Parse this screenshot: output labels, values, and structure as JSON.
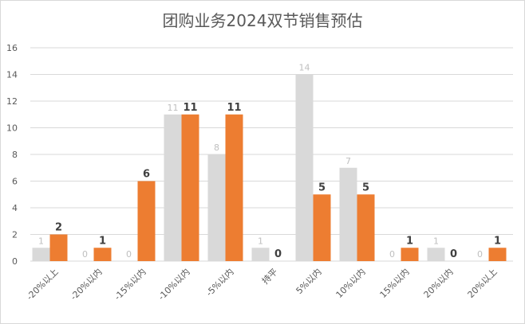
{
  "chart_data": {
    "type": "bar",
    "title": "团购业务2024双节销售预估",
    "xlabel": "",
    "ylabel": "",
    "ylim": [
      0,
      16
    ],
    "yticks": [
      0,
      2,
      4,
      6,
      8,
      10,
      12,
      14,
      16
    ],
    "grid": true,
    "categories": [
      "-20%以上",
      "-20%以内",
      "-15%以内",
      "-10%以内",
      "-5%以内",
      "持平",
      "5%以内",
      "10%以内",
      "15%以内",
      "20%以内",
      "20%以上"
    ],
    "series": [
      {
        "values": [
          1,
          0,
          0,
          11,
          8,
          1,
          14,
          7,
          0,
          1,
          0
        ],
        "color": "#d9d9d9",
        "label_color": "#bfbfbf"
      },
      {
        "values": [
          2,
          1,
          6,
          11,
          11,
          0,
          5,
          5,
          1,
          0,
          1
        ],
        "color": "#ed7d31",
        "label_color": "#404040"
      }
    ]
  }
}
